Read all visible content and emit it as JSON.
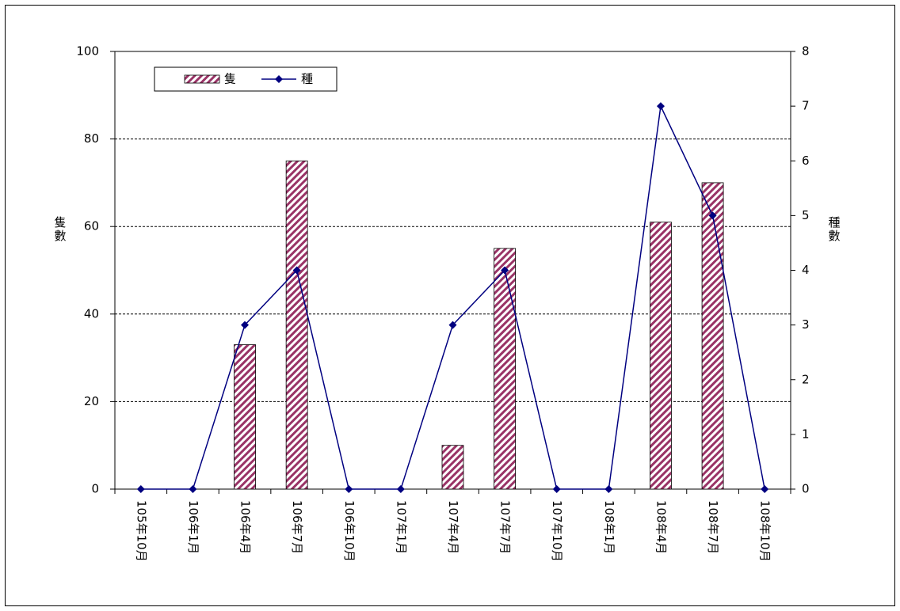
{
  "chart_data": {
    "type": "combo",
    "categories": [
      "105年10月",
      "106年1月",
      "106年4月",
      "106年7月",
      "106年10月",
      "107年1月",
      "107年4月",
      "107年7月",
      "107年10月",
      "108年1月",
      "108年4月",
      "108年7月",
      "108年10月"
    ],
    "series": [
      {
        "name": "隻",
        "type": "bar",
        "color": "#993366",
        "values": [
          0,
          0,
          33,
          75,
          0,
          0,
          10,
          55,
          0,
          0,
          61,
          70,
          0
        ]
      },
      {
        "name": "種",
        "type": "line",
        "color": "#000080",
        "axis": "y2",
        "values": [
          0,
          0,
          3,
          4,
          0,
          0,
          3,
          4,
          0,
          0,
          7,
          5,
          0
        ]
      }
    ],
    "ylabel": "隻數",
    "y2label": "種數",
    "ylim": [
      0,
      100
    ],
    "yticks": [
      0,
      20,
      40,
      60,
      80,
      100
    ],
    "y2lim": [
      0,
      8
    ],
    "y2ticks": [
      0,
      1,
      2,
      3,
      4,
      5,
      6,
      7,
      8
    ],
    "grid": true,
    "legend": "upper left"
  }
}
